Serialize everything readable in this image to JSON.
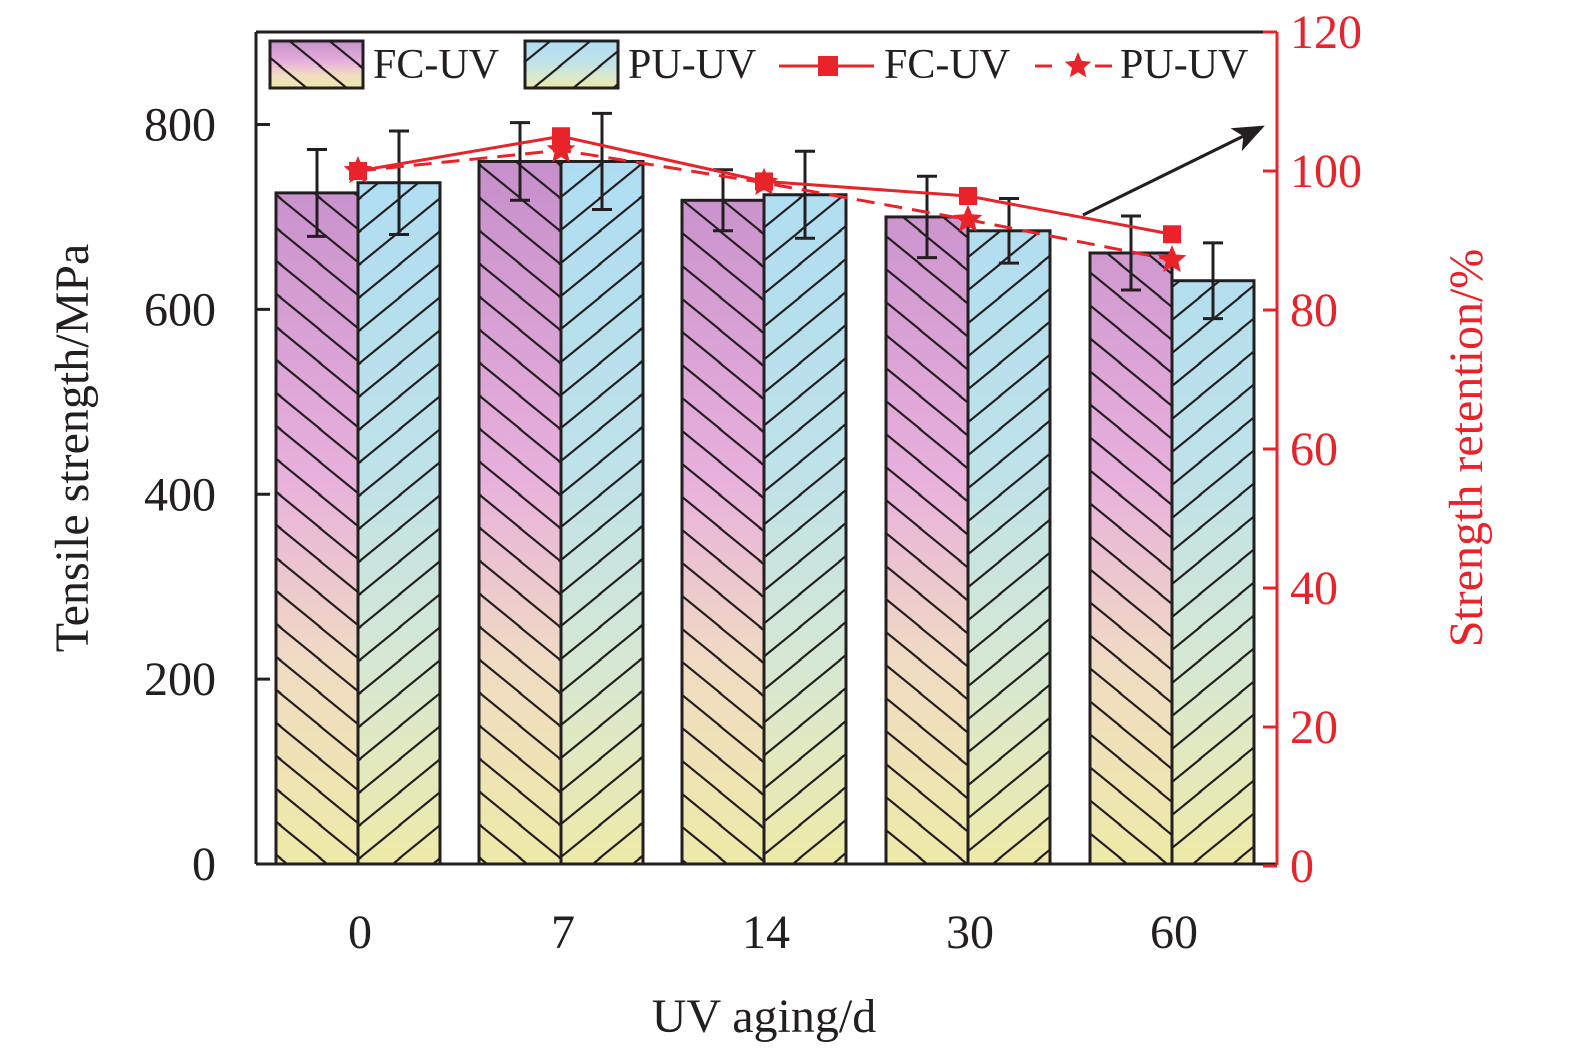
{
  "chart_data": {
    "type": "bar",
    "subtype": "grouped bar with error bars + dual-axis line overlay",
    "title": "",
    "xlabel": "UV aging/d",
    "ylabel": "Tensile strength/MPa",
    "y2label": "Strength retention/%",
    "categories": [
      "0",
      "7",
      "14",
      "30",
      "60"
    ],
    "ylim": [
      0,
      900
    ],
    "yticks": [
      0,
      200,
      400,
      600,
      800
    ],
    "y2lim": [
      0,
      120
    ],
    "y2ticks": [
      0,
      20,
      40,
      60,
      80,
      100,
      120
    ],
    "grid": false,
    "legend_position": "top",
    "series": [
      {
        "name": "FC-UV",
        "kind": "bar",
        "axis": "left",
        "pattern": "back-diagonal hatch",
        "gradient": [
          "#C68FCB",
          "#E8B0DC",
          "#F0DCC2",
          "#EEEAA8"
        ],
        "values": [
          726,
          760,
          718,
          700,
          661
        ],
        "errors": [
          47,
          42,
          33,
          44,
          40
        ]
      },
      {
        "name": "PU-UV",
        "kind": "bar",
        "axis": "left",
        "pattern": "forward-diagonal hatch",
        "gradient": [
          "#AEDDF3",
          "#BFE2E8",
          "#D6E8D2",
          "#EEEAA8"
        ],
        "values": [
          737,
          760,
          724,
          685,
          631
        ],
        "errors": [
          56,
          52,
          47,
          35,
          41
        ]
      },
      {
        "name": "FC-UV",
        "kind": "line",
        "axis": "right",
        "marker": "square",
        "line_style": "solid",
        "color": "#E8242A",
        "values": [
          100,
          105,
          98.5,
          96.4,
          90.9
        ]
      },
      {
        "name": "PU-UV",
        "kind": "line",
        "axis": "right",
        "marker": "star",
        "line_style": "dashed",
        "color": "#E8242A",
        "values": [
          100,
          103,
          98.3,
          93,
          87.2
        ]
      }
    ],
    "annotations": [
      {
        "type": "arrow",
        "description": "arrow pointing from the retention lines toward the right (retention) axis"
      }
    ]
  },
  "colors": {
    "axis": "#231F20",
    "accent_red": "#E8242A"
  }
}
